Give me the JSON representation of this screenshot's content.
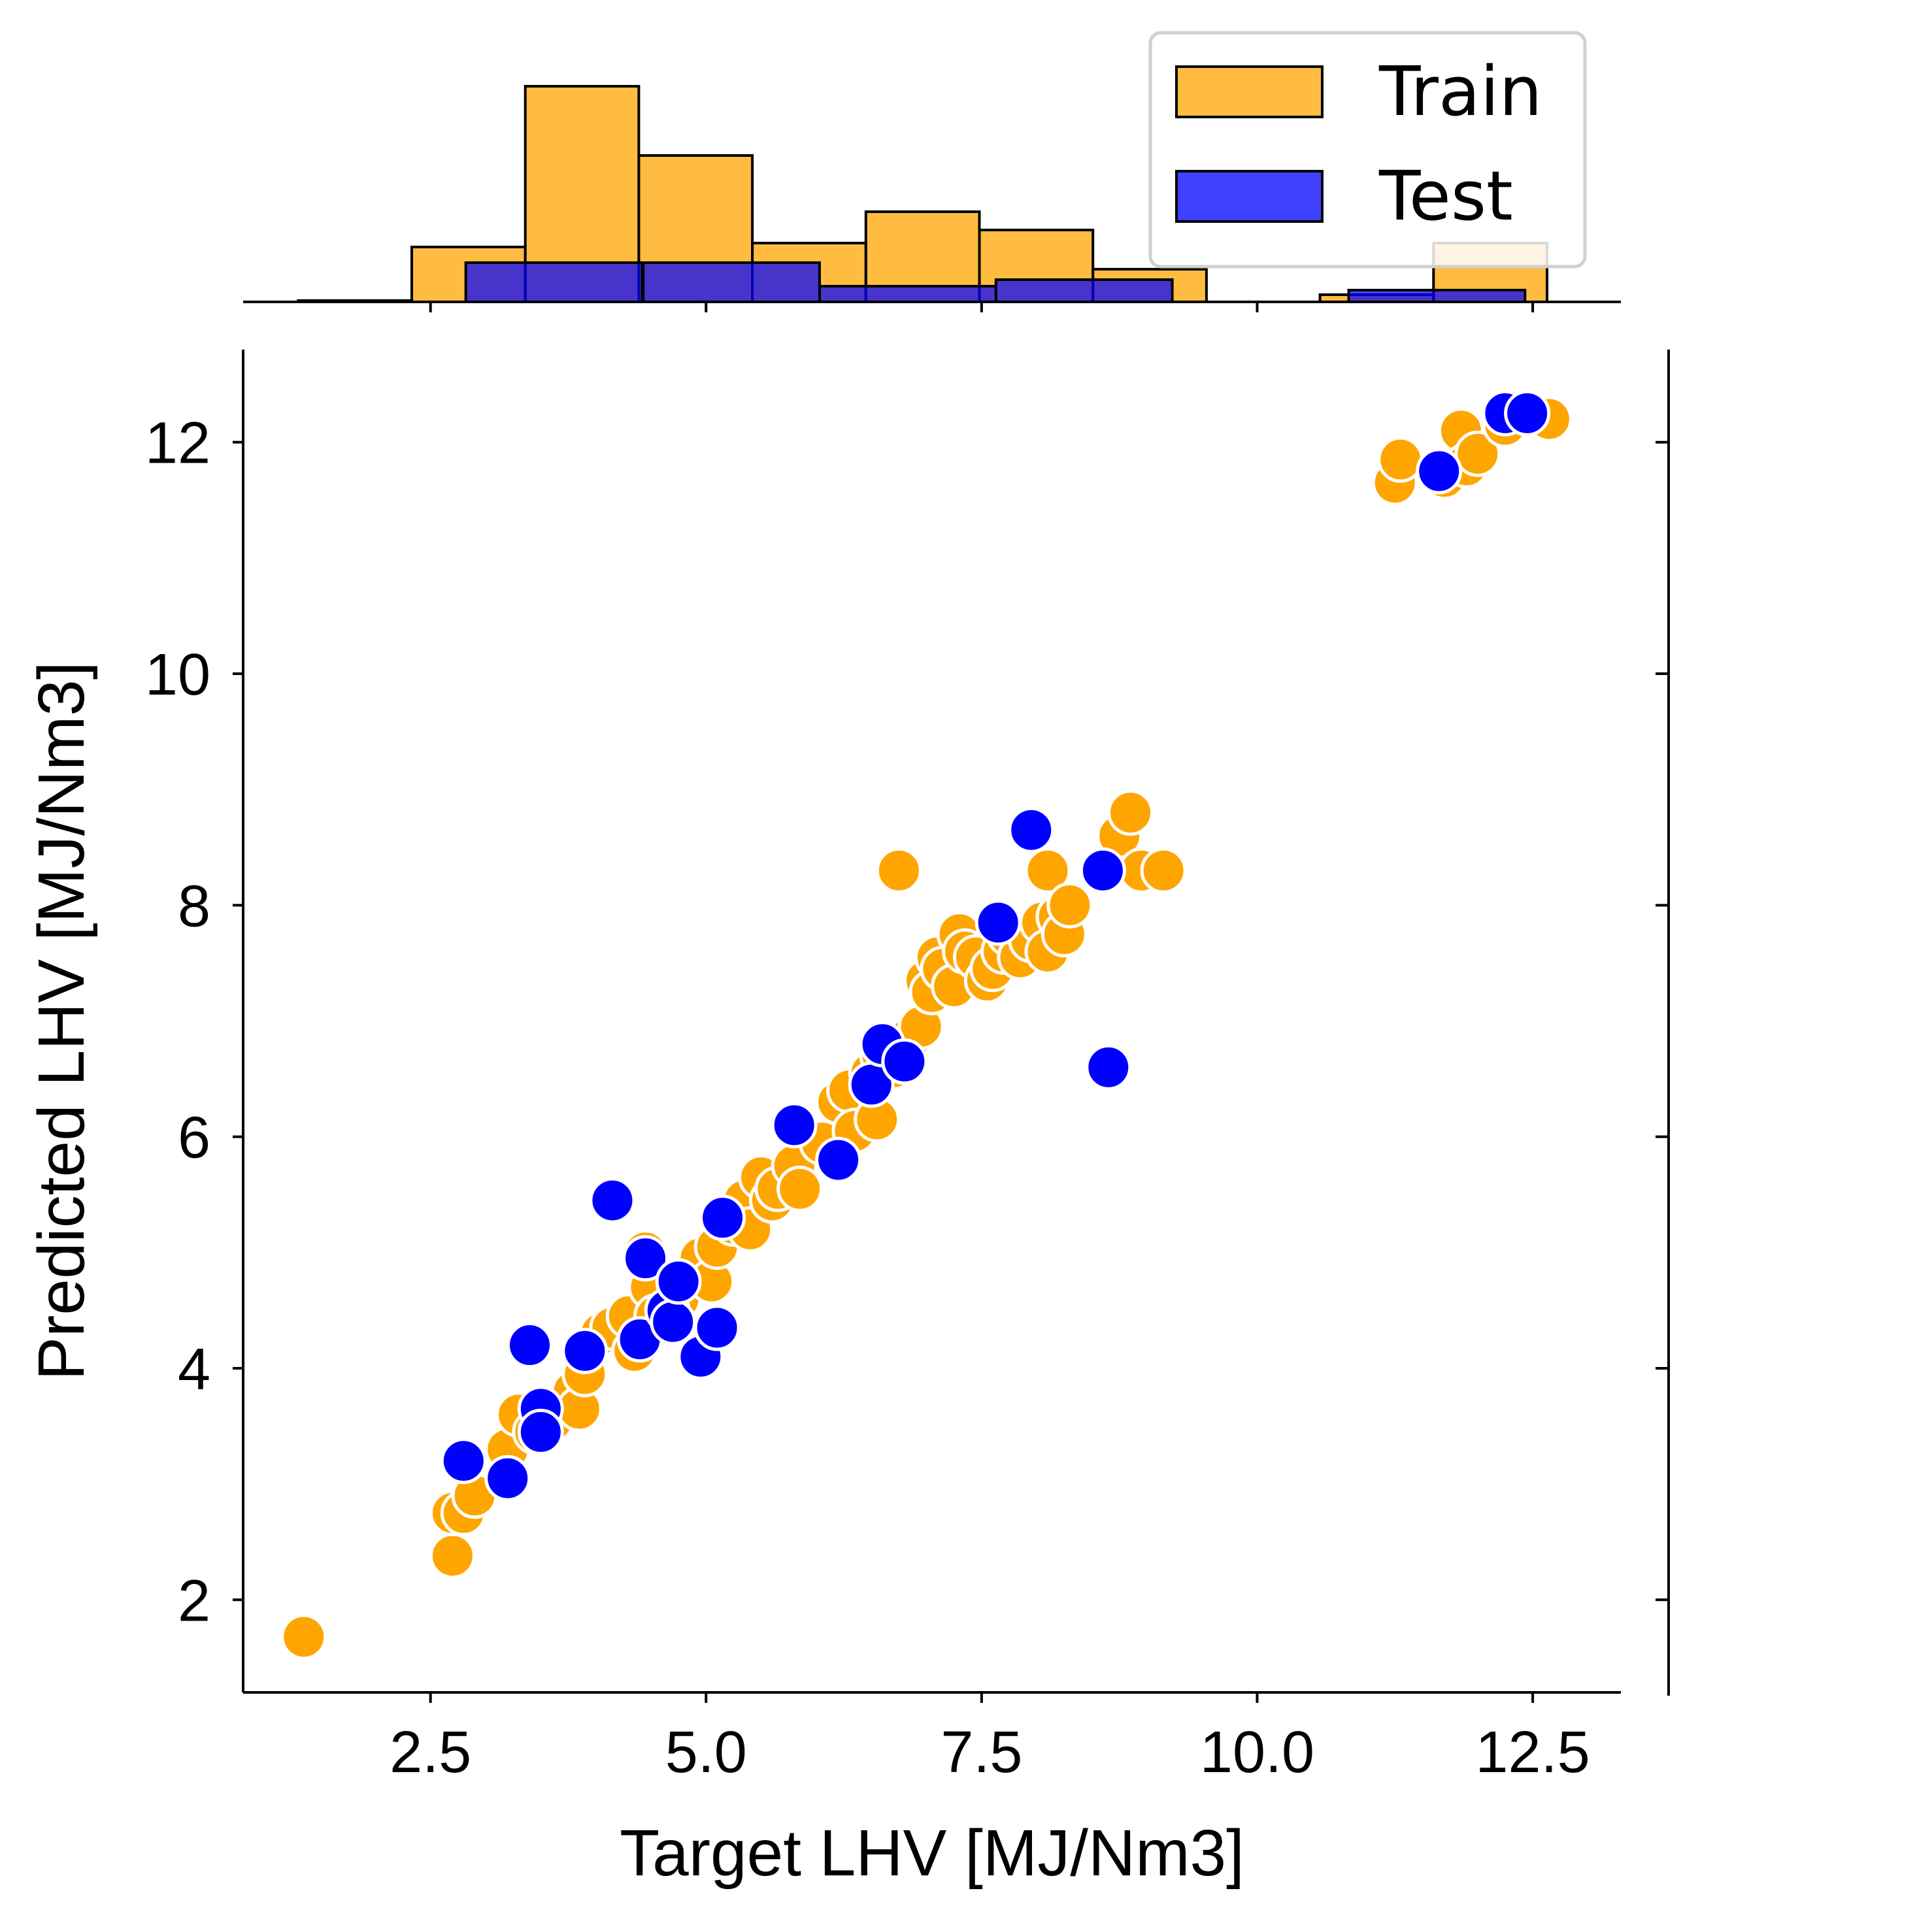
{
  "chart_data": {
    "type": "scatter",
    "xlabel": "Target LHV [MJ/Nm3]",
    "ylabel": "Predicted LHV [MJ/Nm3]",
    "xlim": [
      0.8,
      13.3
    ],
    "ylim": [
      1.2,
      12.8
    ],
    "x_ticks": [
      "2.5",
      "5.0",
      "7.5",
      "10.0",
      "12.5"
    ],
    "y_ticks": [
      "2",
      "4",
      "6",
      "8",
      "10",
      "12"
    ],
    "grid": false,
    "legend": {
      "position": "top-right",
      "entries": [
        "Train",
        "Test"
      ]
    },
    "colors": {
      "train": "#FFA500",
      "test": "#0000FF",
      "edge": "#FFFFFF",
      "bar_edge": "#000000"
    },
    "series": [
      {
        "name": "Train",
        "points": [
          [
            1.35,
            1.68
          ],
          [
            2.7,
            2.38
          ],
          [
            2.7,
            2.75
          ],
          [
            2.8,
            2.75
          ],
          [
            2.9,
            2.9
          ],
          [
            3.2,
            3.3
          ],
          [
            3.3,
            3.6
          ],
          [
            3.45,
            3.45
          ],
          [
            3.6,
            3.55
          ],
          [
            3.75,
            3.7
          ],
          [
            3.8,
            3.8
          ],
          [
            3.85,
            3.65
          ],
          [
            3.9,
            3.95
          ],
          [
            4.05,
            4.3
          ],
          [
            4.15,
            4.35
          ],
          [
            4.3,
            4.45
          ],
          [
            4.35,
            4.15
          ],
          [
            4.45,
            5.0
          ],
          [
            4.5,
            4.7
          ],
          [
            4.55,
            4.45
          ],
          [
            4.65,
            4.5
          ],
          [
            4.75,
            4.6
          ],
          [
            4.85,
            4.8
          ],
          [
            4.95,
            4.95
          ],
          [
            5.05,
            4.75
          ],
          [
            5.1,
            5.05
          ],
          [
            5.25,
            5.25
          ],
          [
            5.35,
            5.45
          ],
          [
            5.4,
            5.2
          ],
          [
            5.5,
            5.65
          ],
          [
            5.6,
            5.45
          ],
          [
            5.65,
            5.55
          ],
          [
            5.8,
            5.75
          ],
          [
            5.85,
            5.55
          ],
          [
            6.05,
            5.95
          ],
          [
            6.2,
            6.3
          ],
          [
            6.3,
            6.4
          ],
          [
            6.35,
            6.05
          ],
          [
            6.5,
            6.55
          ],
          [
            6.55,
            6.15
          ],
          [
            6.6,
            6.7
          ],
          [
            6.7,
            6.6
          ],
          [
            6.75,
            8.3
          ],
          [
            6.85,
            6.85
          ],
          [
            6.95,
            6.95
          ],
          [
            7.0,
            7.35
          ],
          [
            7.05,
            7.25
          ],
          [
            7.1,
            7.55
          ],
          [
            7.15,
            7.45
          ],
          [
            7.25,
            7.3
          ],
          [
            7.3,
            7.75
          ],
          [
            7.35,
            7.6
          ],
          [
            7.45,
            7.55
          ],
          [
            7.55,
            7.35
          ],
          [
            7.6,
            7.45
          ],
          [
            7.7,
            7.6
          ],
          [
            7.75,
            7.75
          ],
          [
            7.85,
            7.55
          ],
          [
            7.95,
            7.7
          ],
          [
            8.05,
            7.85
          ],
          [
            8.1,
            7.6
          ],
          [
            8.1,
            8.3
          ],
          [
            8.2,
            7.9
          ],
          [
            8.25,
            7.75
          ],
          [
            8.3,
            8.0
          ],
          [
            8.75,
            8.6
          ],
          [
            8.85,
            8.8
          ],
          [
            8.95,
            8.3
          ],
          [
            9.15,
            8.3
          ],
          [
            11.25,
            11.65
          ],
          [
            11.3,
            11.85
          ],
          [
            11.7,
            11.7
          ],
          [
            11.85,
            12.1
          ],
          [
            11.9,
            11.8
          ],
          [
            12.0,
            11.9
          ],
          [
            12.25,
            12.15
          ],
          [
            12.65,
            12.2
          ]
        ]
      },
      {
        "name": "Test",
        "points": [
          [
            2.8,
            3.2
          ],
          [
            3.2,
            3.05
          ],
          [
            3.4,
            4.2
          ],
          [
            3.5,
            3.65
          ],
          [
            3.5,
            3.45
          ],
          [
            3.9,
            4.15
          ],
          [
            4.15,
            5.45
          ],
          [
            4.4,
            4.25
          ],
          [
            4.45,
            4.95
          ],
          [
            4.65,
            4.5
          ],
          [
            4.7,
            4.4
          ],
          [
            4.75,
            4.75
          ],
          [
            4.95,
            4.1
          ],
          [
            5.1,
            4.35
          ],
          [
            5.15,
            5.3
          ],
          [
            5.8,
            6.1
          ],
          [
            6.2,
            5.8
          ],
          [
            6.5,
            6.45
          ],
          [
            6.6,
            6.8
          ],
          [
            6.8,
            6.65
          ],
          [
            7.65,
            7.85
          ],
          [
            7.95,
            8.65
          ],
          [
            8.6,
            8.3
          ],
          [
            8.65,
            6.6
          ],
          [
            11.65,
            11.75
          ],
          [
            12.25,
            12.25
          ],
          [
            12.45,
            12.25
          ]
        ]
      }
    ],
    "marginal_histograms": {
      "bin_width": 1.03,
      "Train": [
        {
          "start": 1.3,
          "count": 0.1
        },
        {
          "start": 2.33,
          "count": 4.2
        },
        {
          "start": 3.36,
          "count": 16.5
        },
        {
          "start": 4.39,
          "count": 11.2
        },
        {
          "start": 5.42,
          "count": 4.5
        },
        {
          "start": 6.45,
          "count": 6.9
        },
        {
          "start": 7.48,
          "count": 5.5
        },
        {
          "start": 8.51,
          "count": 2.5
        },
        {
          "start": 10.57,
          "count": 0.55
        },
        {
          "start": 11.6,
          "count": 4.5
        }
      ],
      "Test": [
        {
          "start": 2.82,
          "count": 3.0
        },
        {
          "start": 4.43,
          "count": 3.0
        },
        {
          "start": 6.03,
          "count": 1.2
        },
        {
          "start": 7.63,
          "count": 1.7
        },
        {
          "start": 10.83,
          "count": 0.9
        }
      ]
    }
  }
}
